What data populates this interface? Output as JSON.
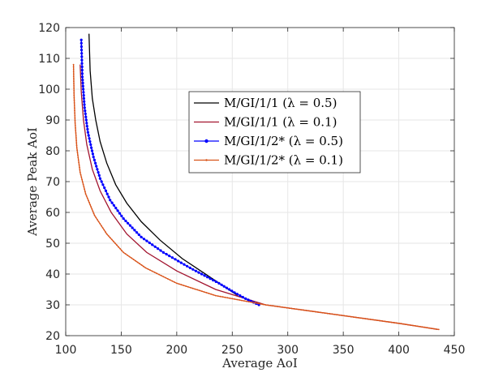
{
  "chart_data": {
    "type": "line",
    "title": "",
    "xlabel": "Average AoI",
    "ylabel": "Average Peak AoI",
    "xlim": [
      100,
      450
    ],
    "ylim": [
      20,
      120
    ],
    "xticks": [
      100,
      150,
      200,
      250,
      300,
      350,
      400,
      450
    ],
    "yticks": [
      20,
      30,
      40,
      50,
      60,
      70,
      80,
      90,
      100,
      110,
      120
    ],
    "grid": true,
    "legend_position": "upper-center",
    "series": [
      {
        "name": "M/GI/1/1 (λ = 0.5)",
        "color": "#000000",
        "marker": "none",
        "x": [
          121,
          122,
          124,
          127,
          131,
          137,
          145,
          155,
          168,
          185,
          205,
          230,
          255
        ],
        "y": [
          118,
          106,
          97,
          90,
          83,
          76,
          69,
          63,
          57,
          51,
          45,
          39,
          33
        ]
      },
      {
        "name": "M/GI/1/1 (λ = 0.1)",
        "color": "#a2142f",
        "marker": "none",
        "x": [
          113,
          114,
          116,
          119,
          124,
          131,
          141,
          155,
          173,
          200,
          235,
          280,
          340,
          400,
          435
        ],
        "y": [
          108,
          99,
          90,
          82,
          74,
          67,
          60,
          53,
          47,
          41,
          35,
          30,
          27,
          24,
          22
        ]
      },
      {
        "name": "M/GI/1/2* (λ = 0.5)",
        "color": "#0000ff",
        "marker": "dot",
        "x": [
          114,
          115,
          117,
          120,
          125,
          131,
          140,
          152,
          168,
          188,
          212,
          238,
          252,
          262,
          274
        ],
        "y": [
          116,
          104,
          94,
          86,
          78,
          71,
          64,
          58,
          52,
          47,
          42,
          37,
          34,
          32,
          30
        ]
      },
      {
        "name": "M/GI/1/2* (λ = 0.1)",
        "color": "#d95319",
        "marker": "dot",
        "x": [
          107,
          107.5,
          108.5,
          110,
          113,
          118,
          126,
          137,
          152,
          172,
          200,
          235,
          280,
          340,
          400,
          436
        ],
        "y": [
          108,
          98,
          89,
          81,
          73,
          66,
          59,
          53,
          47,
          42,
          37,
          33,
          30,
          27,
          24,
          22
        ]
      }
    ]
  }
}
